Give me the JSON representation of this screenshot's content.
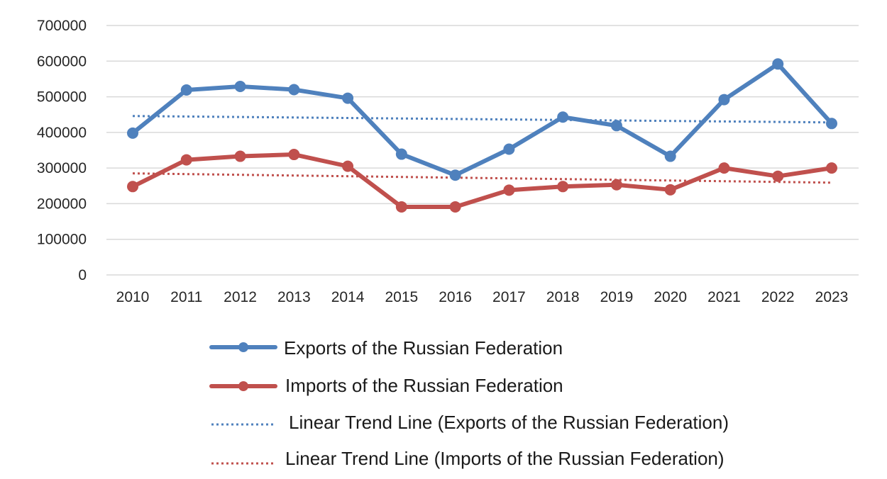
{
  "chart_data": {
    "type": "line",
    "categories": [
      "2010",
      "2011",
      "2012",
      "2013",
      "2014",
      "2015",
      "2016",
      "2017",
      "2018",
      "2019",
      "2020",
      "2021",
      "2022",
      "2023"
    ],
    "ylim": [
      0,
      700000
    ],
    "yticks": [
      0,
      100000,
      200000,
      300000,
      400000,
      500000,
      600000,
      700000
    ],
    "ytick_labels": [
      "0",
      "100000",
      "200000",
      "300000",
      "400000",
      "500000",
      "600000",
      "700000"
    ],
    "grid": true,
    "legend_position": "bottom",
    "series": [
      {
        "name": "Exports of the Russian Federation",
        "color": "#4f81bd",
        "values": [
          398000,
          519000,
          529000,
          520000,
          496000,
          339000,
          280000,
          353000,
          443000,
          419000,
          333000,
          492000,
          592000,
          425000
        ]
      },
      {
        "name": "Imports of the Russian Federation",
        "color": "#c0504d",
        "values": [
          248000,
          323000,
          333000,
          338000,
          305000,
          191000,
          191000,
          238000,
          248000,
          253000,
          239000,
          300000,
          277000,
          300000
        ]
      }
    ],
    "trendlines": [
      {
        "name": "Linear Trend Line (Exports of the Russian Federation)",
        "color": "#4f81bd",
        "start": 446000,
        "end": 428000
      },
      {
        "name": "Linear Trend Line (Imports of the Russian Federation)",
        "color": "#c0504d",
        "start": 285000,
        "end": 259000
      }
    ]
  }
}
